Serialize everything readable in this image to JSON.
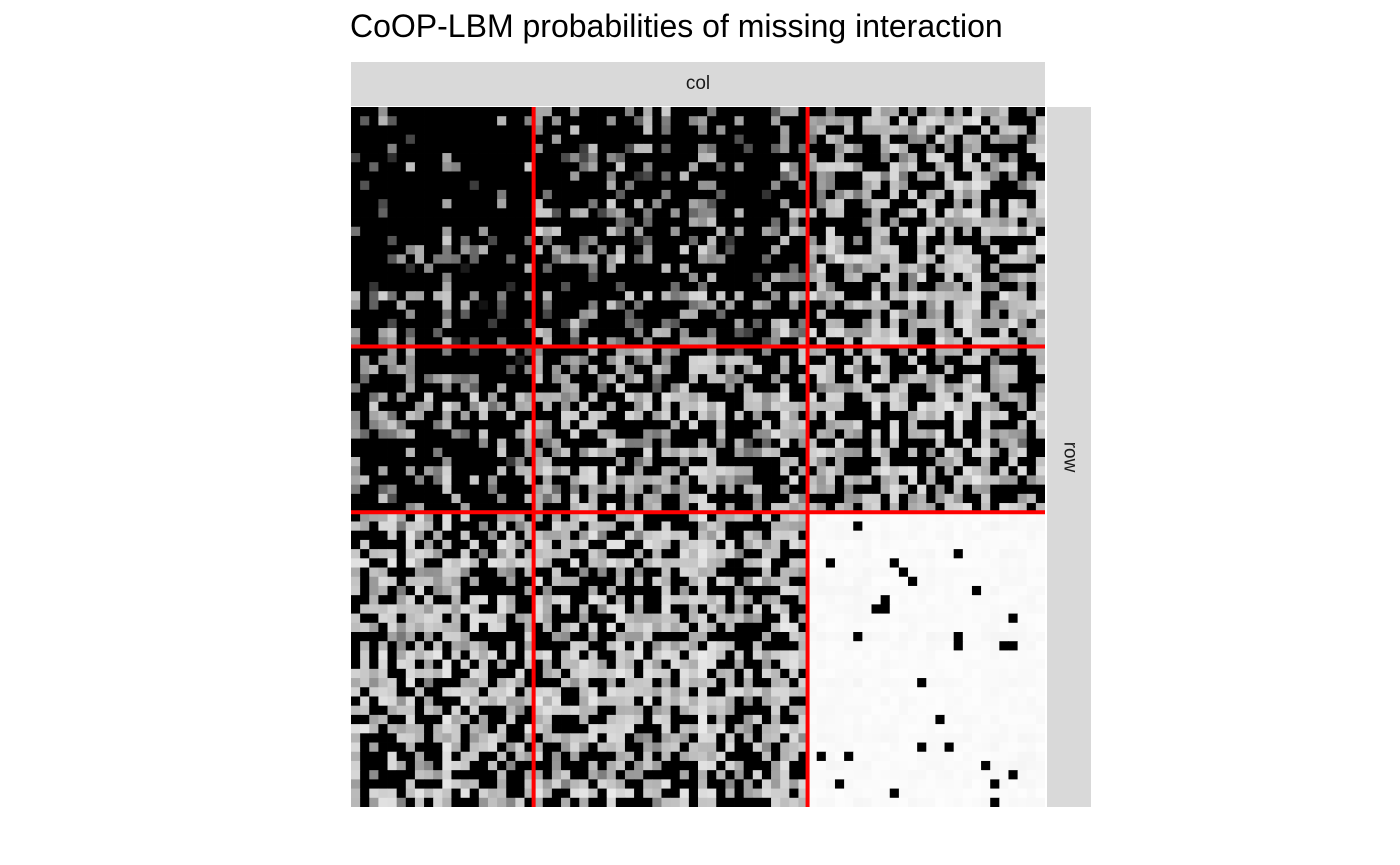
{
  "chart_data": {
    "type": "heatmap",
    "title": "CoOP-LBM probabilities of missing interaction",
    "facet_col_label": "col",
    "facet_row_label": "row",
    "n_rows": 76,
    "n_cols": 76,
    "row_group_boundaries": [
      26,
      44
    ],
    "col_group_boundaries": [
      20,
      50
    ],
    "color_scale": {
      "low": "#ffffff",
      "high": "#000000"
    },
    "block_density": [
      [
        0.82,
        0.68,
        0.42
      ],
      [
        0.62,
        0.48,
        0.4
      ],
      [
        0.4,
        0.4,
        0.03
      ]
    ],
    "separator_color": "#ff0000",
    "grid": false,
    "legend": "none"
  }
}
